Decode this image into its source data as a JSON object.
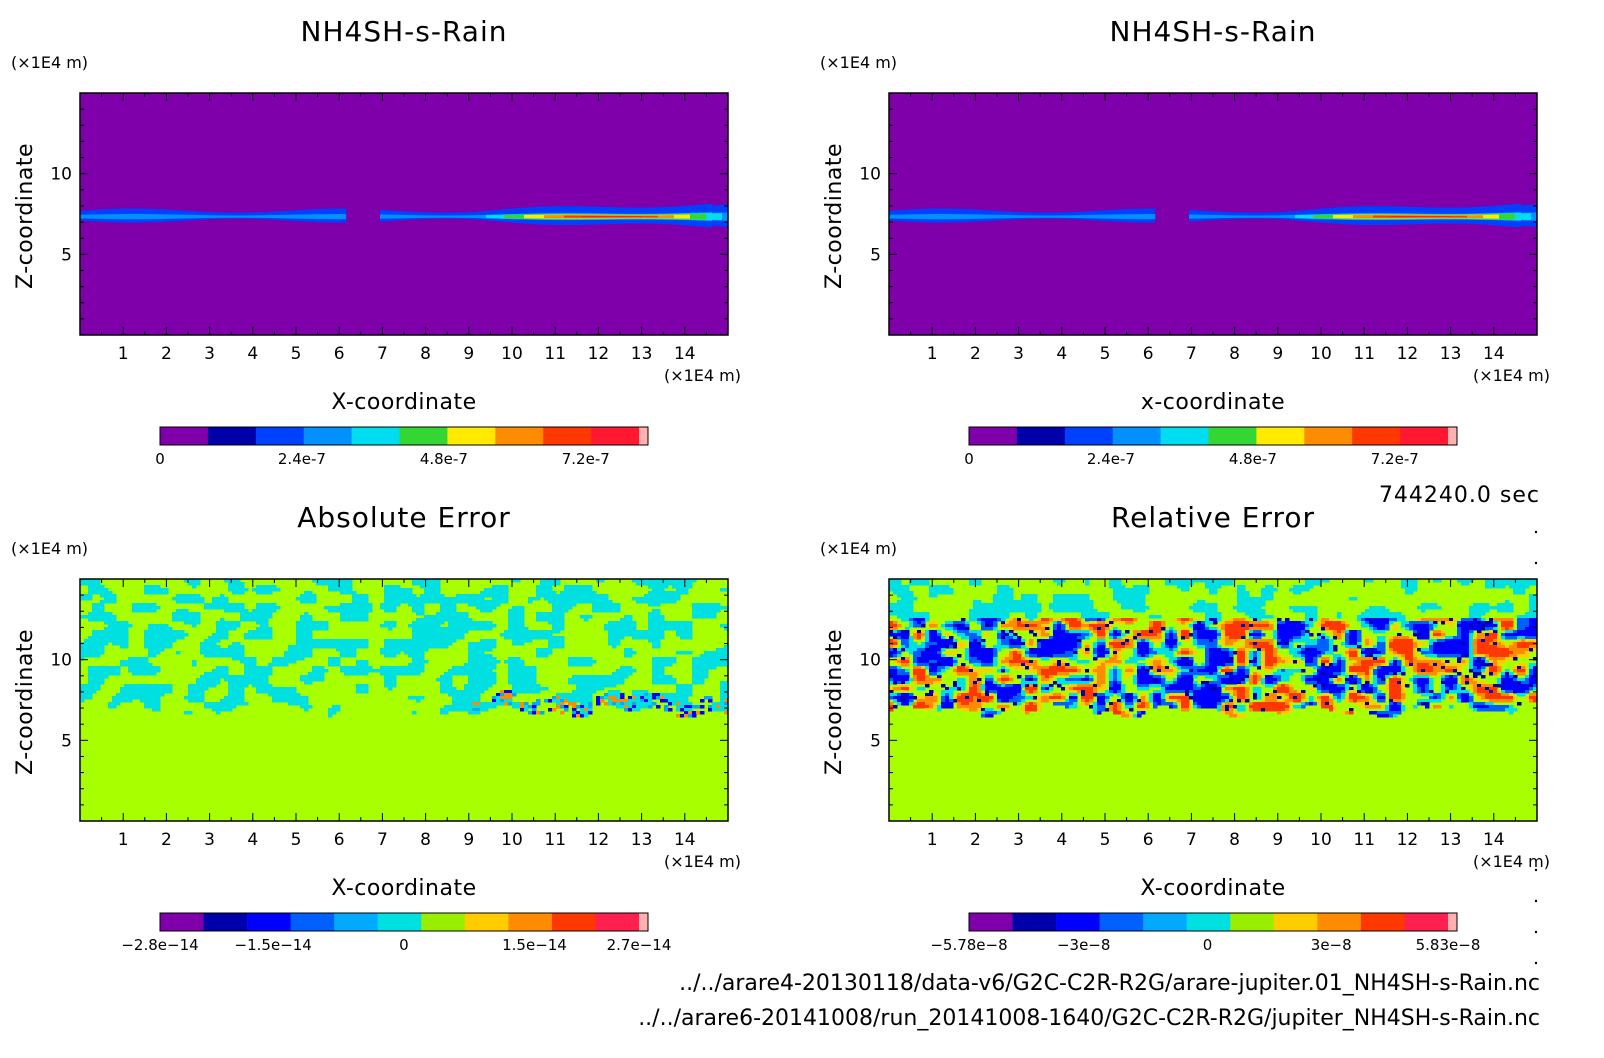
{
  "chart_data": [
    {
      "type": "heatmap",
      "title": "NH4SH-s-Rain",
      "xlabel": "X-coordinate",
      "ylabel": "Z-coordinate",
      "x_unit": "(×1E4 m)",
      "y_unit": "(×1E4 m)",
      "xlim": [
        0,
        15
      ],
      "ylim": [
        0,
        15
      ],
      "x_ticks": [
        "1",
        "2",
        "3",
        "4",
        "5",
        "6",
        "7",
        "8",
        "9",
        "10",
        "11",
        "12",
        "13",
        "14"
      ],
      "y_ticks": [
        "5",
        "10"
      ],
      "colorbar": {
        "min": 0,
        "max": 8.1e-07,
        "labels": [
          "0",
          "2.4e-7",
          "4.8e-7",
          "7.2e-7"
        ],
        "label_values": [
          0,
          2.4e-07,
          4.8e-07,
          7.2e-07
        ],
        "colors": [
          "#7f00aa",
          "#0000aa",
          "#0040ff",
          "#0090ff",
          "#00dcf0",
          "#33d633",
          "#ffea00",
          "#ff8c00",
          "#ff3800",
          "#ff1830",
          "#ffb0b0"
        ]
      },
      "pattern": "rain-band",
      "background_color": "#7f00aa"
    },
    {
      "type": "heatmap",
      "title": "NH4SH-s-Rain",
      "xlabel": "x-coordinate",
      "ylabel": "Z-coordinate",
      "x_unit": "(×1E4 m)",
      "y_unit": "(×1E4 m)",
      "xlim": [
        0,
        15
      ],
      "ylim": [
        0,
        15
      ],
      "x_ticks": [
        "1",
        "2",
        "3",
        "4",
        "5",
        "6",
        "7",
        "8",
        "9",
        "10",
        "11",
        "12",
        "13",
        "14"
      ],
      "y_ticks": [
        "5",
        "10"
      ],
      "colorbar": {
        "min": 0,
        "max": 8.1e-07,
        "labels": [
          "0",
          "2.4e-7",
          "4.8e-7",
          "7.2e-7"
        ],
        "label_values": [
          0,
          2.4e-07,
          4.8e-07,
          7.2e-07
        ],
        "colors": [
          "#7f00aa",
          "#0000aa",
          "#0040ff",
          "#0090ff",
          "#00dcf0",
          "#33d633",
          "#ffea00",
          "#ff8c00",
          "#ff3800",
          "#ff1830",
          "#ffb0b0"
        ]
      },
      "pattern": "rain-band",
      "background_color": "#7f00aa"
    },
    {
      "type": "heatmap",
      "title": "Absolute Error",
      "xlabel": "X-coordinate",
      "ylabel": "Z-coordinate",
      "x_unit": "(×1E4 m)",
      "y_unit": "(×1E4 m)",
      "xlim": [
        0,
        15
      ],
      "ylim": [
        0,
        15
      ],
      "x_ticks": [
        "1",
        "2",
        "3",
        "4",
        "5",
        "6",
        "7",
        "8",
        "9",
        "10",
        "11",
        "12",
        "13",
        "14"
      ],
      "y_ticks": [
        "5",
        "10"
      ],
      "colorbar": {
        "min": -2.8e-14,
        "max": 2.7e-14,
        "labels": [
          "−2.8e−14",
          "−1.5e−14",
          "0",
          "1.5e−14",
          "2.7e−14"
        ],
        "label_values": [
          -2.8e-14,
          -1.5e-14,
          0,
          1.5e-14,
          2.7e-14
        ],
        "colors": [
          "#7f00aa",
          "#0000aa",
          "#0000ff",
          "#0060ff",
          "#00aaff",
          "#00e0e0",
          "#99ee00",
          "#ffcc00",
          "#ff8c00",
          "#ff3800",
          "#ff2050",
          "#ffb0b0"
        ]
      },
      "pattern": "abs-error",
      "background_color": "#a8ff00"
    },
    {
      "type": "heatmap",
      "title": "Relative Error",
      "xlabel": "X-coordinate",
      "ylabel": "Z-coordinate",
      "x_unit": "(×1E4 m)",
      "y_unit": "(×1E4 m)",
      "xlim": [
        0,
        15
      ],
      "ylim": [
        0,
        15
      ],
      "x_ticks": [
        "1",
        "2",
        "3",
        "4",
        "5",
        "6",
        "7",
        "8",
        "9",
        "10",
        "11",
        "12",
        "13",
        "14"
      ],
      "y_ticks": [
        "5",
        "10"
      ],
      "colorbar": {
        "min": -5.78e-08,
        "max": 5.83e-08,
        "labels": [
          "−5.78e−8",
          "−3e−8",
          "0",
          "3e−8",
          "5.83e−8"
        ],
        "label_values": [
          -5.78e-08,
          -3e-08,
          0,
          3e-08,
          5.83e-08
        ],
        "colors": [
          "#7f00aa",
          "#0000aa",
          "#0000ff",
          "#0060ff",
          "#00aaff",
          "#00e0e0",
          "#99ee00",
          "#ffcc00",
          "#ff8c00",
          "#ff3800",
          "#ff2050",
          "#ffb0b0"
        ]
      },
      "pattern": "rel-error",
      "background_color": "#a8ff00"
    }
  ],
  "time_label": "744240.0 sec",
  "files": [
    "../../arare4-20130118/data-v6/G2C-C2R-R2G/arare-jupiter.01_NH4SH-s-Rain.nc",
    "../../arare6-20141008/run_20141008-1640/G2C-C2R-R2G/jupiter_NH4SH-s-Rain.nc"
  ]
}
